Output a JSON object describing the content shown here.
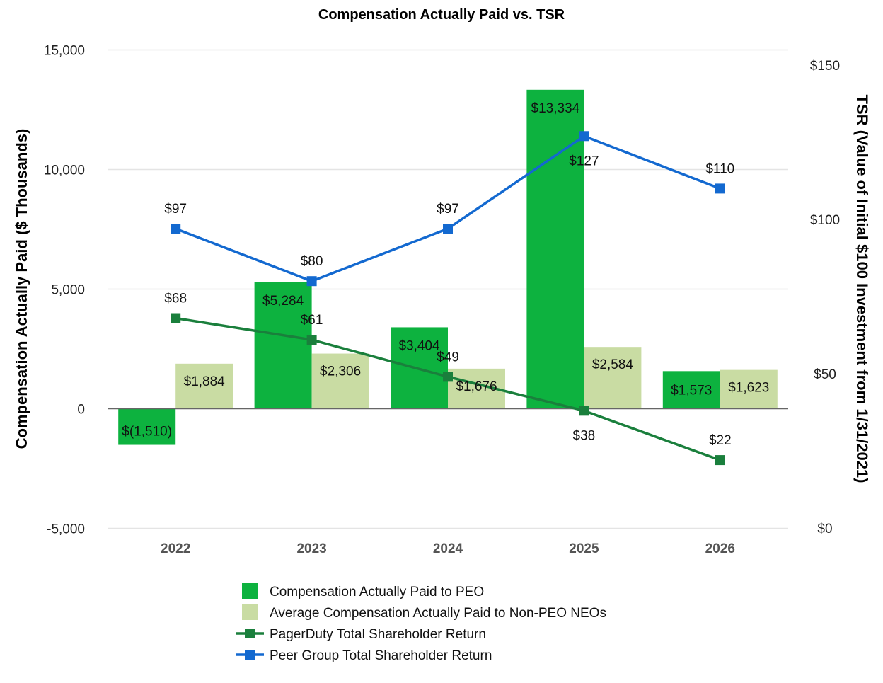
{
  "chart_data": {
    "type": "bar",
    "title": "Compensation Actually Paid vs. TSR",
    "categories": [
      "2022",
      "2023",
      "2024",
      "2025",
      "2026"
    ],
    "y_left": {
      "label": "Compensation Actually Paid ($ Thousands)",
      "range": [
        -5000,
        15000
      ],
      "ticks": [
        -5000,
        0,
        5000,
        10000,
        15000
      ],
      "tick_labels": [
        "-5,000",
        "0",
        "5,000",
        "10,000",
        "15,000"
      ]
    },
    "y_right": {
      "label": "TSR (Value of Initial $100 Investment from 1/31/2021)",
      "range": [
        0,
        150
      ],
      "ticks": [
        0,
        50,
        100,
        150
      ],
      "tick_labels": [
        "$0",
        "$50",
        "$100",
        "$150"
      ]
    },
    "grid": true,
    "legend_position": "bottom",
    "series": [
      {
        "name": "Compensation Actually Paid to PEO",
        "kind": "bar",
        "axis": "left",
        "color": "#0db23f",
        "values": [
          -1510,
          5284,
          3404,
          13334,
          1573
        ],
        "labels": [
          "$(1,510)",
          "$5,284",
          "$3,404",
          "$13,334",
          "$1,573"
        ]
      },
      {
        "name": "Average Compensation Actually Paid to Non-PEO NEOs",
        "kind": "bar",
        "axis": "left",
        "color": "#c9dca3",
        "values": [
          1884,
          2306,
          1676,
          2584,
          1623
        ],
        "labels": [
          "$1,884",
          "$2,306",
          "$1,676",
          "$2,584",
          "$1,623"
        ]
      },
      {
        "name": "PagerDuty Total Shareholder Return",
        "kind": "line",
        "axis": "right",
        "color": "#1a7f3c",
        "values": [
          68,
          61,
          49,
          38,
          22
        ],
        "labels": [
          "$68",
          "$61",
          "$49",
          "$38",
          "$22"
        ]
      },
      {
        "name": "Peer Group Total Shareholder Return",
        "kind": "line",
        "axis": "right",
        "color": "#1369d0",
        "values": [
          97,
          80,
          97,
          127,
          110
        ],
        "labels": [
          "$97",
          "$80",
          "$97",
          "$127",
          "$110"
        ]
      }
    ]
  }
}
